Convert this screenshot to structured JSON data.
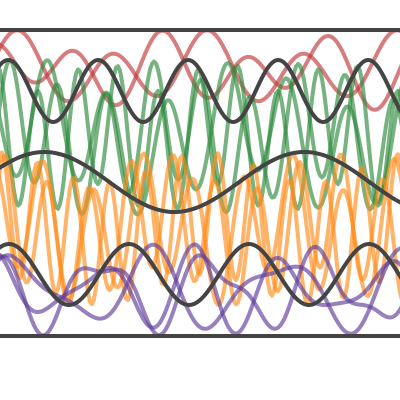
{
  "bands": [
    {
      "color": "#c0393b"
    },
    {
      "color": "#2e8b3e"
    },
    {
      "color": "#ff8c1a"
    },
    {
      "color": "#5e3c99"
    }
  ],
  "frame_color": "#444444"
}
